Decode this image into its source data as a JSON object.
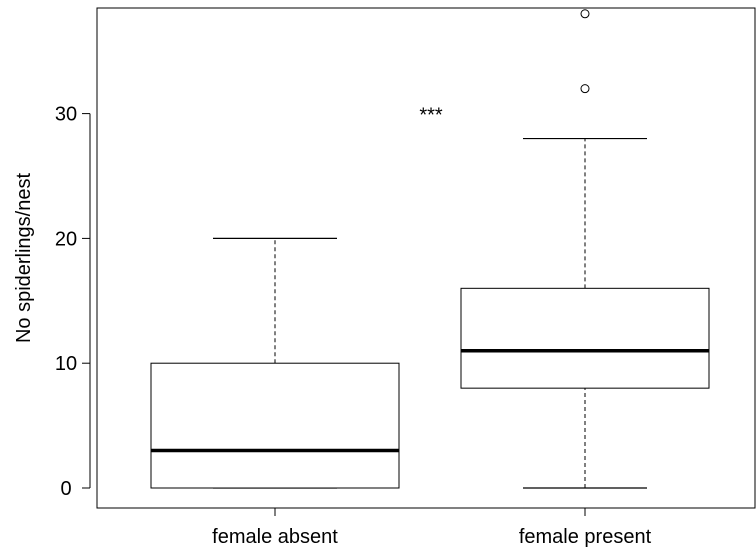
{
  "chart_data": {
    "type": "boxplot",
    "title": "",
    "xlabel": "",
    "ylabel": "No spiderlings/nest",
    "ylim": [
      -1.5,
      38
    ],
    "yticks": [
      "0",
      "10",
      "20",
      "30"
    ],
    "categories": [
      "female absent",
      "female present"
    ],
    "boxes": [
      {
        "category": "female absent",
        "whisker_low": 0,
        "q1": 0,
        "median": 3,
        "q3": 10,
        "whisker_high": 20,
        "outliers": []
      },
      {
        "category": "female present",
        "whisker_low": 0,
        "q1": 8,
        "median": 11,
        "q3": 16,
        "whisker_high": 28,
        "outliers": [
          32,
          38
        ]
      }
    ],
    "annotations": [
      {
        "text": "***",
        "x_between": [
          "female absent",
          "female present"
        ],
        "y": 30
      }
    ],
    "grid": false,
    "legend": "none",
    "colors": {
      "box_fill": "#ffffff",
      "stroke": "#000000"
    }
  }
}
